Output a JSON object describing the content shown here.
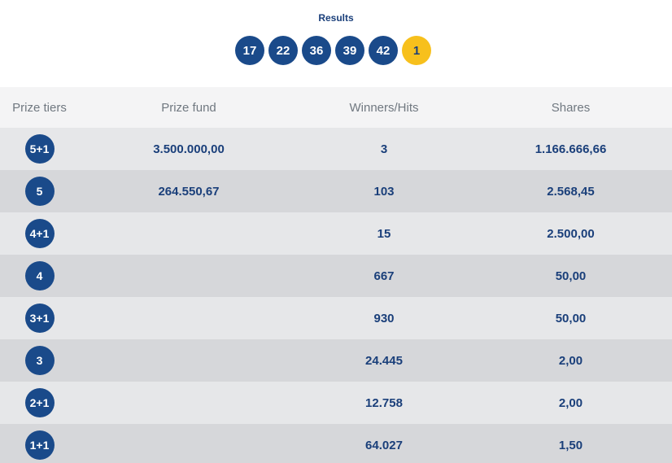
{
  "header": {
    "title": "Results",
    "numbers": [
      "17",
      "22",
      "36",
      "39",
      "42"
    ],
    "extra_number": "1",
    "colors": {
      "ball": "#1a4a8a",
      "extra_ball": "#f7c01c"
    }
  },
  "table": {
    "columns": [
      "Prize tiers",
      "Prize fund",
      "Winners/Hits",
      "Shares"
    ],
    "rows": [
      {
        "tier": "5+1",
        "fund": "3.500.000,00",
        "winners": "3",
        "share": "1.166.666,66"
      },
      {
        "tier": "5",
        "fund": "264.550,67",
        "winners": "103",
        "share": "2.568,45"
      },
      {
        "tier": "4+1",
        "fund": "",
        "winners": "15",
        "share": "2.500,00"
      },
      {
        "tier": "4",
        "fund": "",
        "winners": "667",
        "share": "50,00"
      },
      {
        "tier": "3+1",
        "fund": "",
        "winners": "930",
        "share": "50,00"
      },
      {
        "tier": "3",
        "fund": "",
        "winners": "24.445",
        "share": "2,00"
      },
      {
        "tier": "2+1",
        "fund": "",
        "winners": "12.758",
        "share": "2,00"
      },
      {
        "tier": "1+1",
        "fund": "",
        "winners": "64.027",
        "share": "1,50"
      }
    ]
  }
}
